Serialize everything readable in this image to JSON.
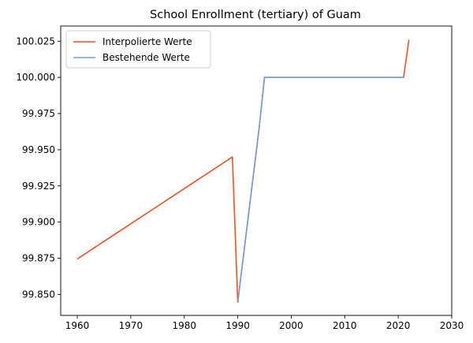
{
  "chart_data": {
    "type": "line",
    "title": "School Enrollment (tertiary) of Guam",
    "xlabel": "",
    "ylabel": "",
    "xlim": [
      1956.9,
      2030
    ],
    "ylim": [
      99.8355,
      100.0355
    ],
    "xticks": [
      1960,
      1970,
      1980,
      1990,
      2000,
      2010,
      2020,
      2030
    ],
    "yticks": [
      99.85,
      99.875,
      99.9,
      99.925,
      99.95,
      99.975,
      100.0,
      100.025
    ],
    "xtick_labels": [
      "1960",
      "1970",
      "1980",
      "1990",
      "2000",
      "2010",
      "2020",
      "2030"
    ],
    "ytick_labels": [
      "99.850",
      "99.875",
      "99.900",
      "99.925",
      "99.950",
      "99.975",
      "100.000",
      "100.025"
    ],
    "grid": false,
    "legend_position": "top-left",
    "series": [
      {
        "name": "Interpolierte Werte",
        "color": "#f4511e",
        "points": [
          [
            1960,
            99.8745
          ],
          [
            1989,
            99.945
          ],
          [
            1990,
            99.8445
          ],
          [
            1994,
            99.965
          ],
          [
            1995,
            100.0
          ],
          [
            2021,
            100.0
          ],
          [
            2022,
            100.026
          ]
        ]
      },
      {
        "name": "Bestehende Werte",
        "color": "#6d9eeb",
        "points": [
          [
            1990,
            99.8445
          ],
          [
            1994,
            99.965
          ],
          [
            1995,
            100.0
          ],
          [
            2021,
            100.0
          ]
        ]
      }
    ]
  }
}
